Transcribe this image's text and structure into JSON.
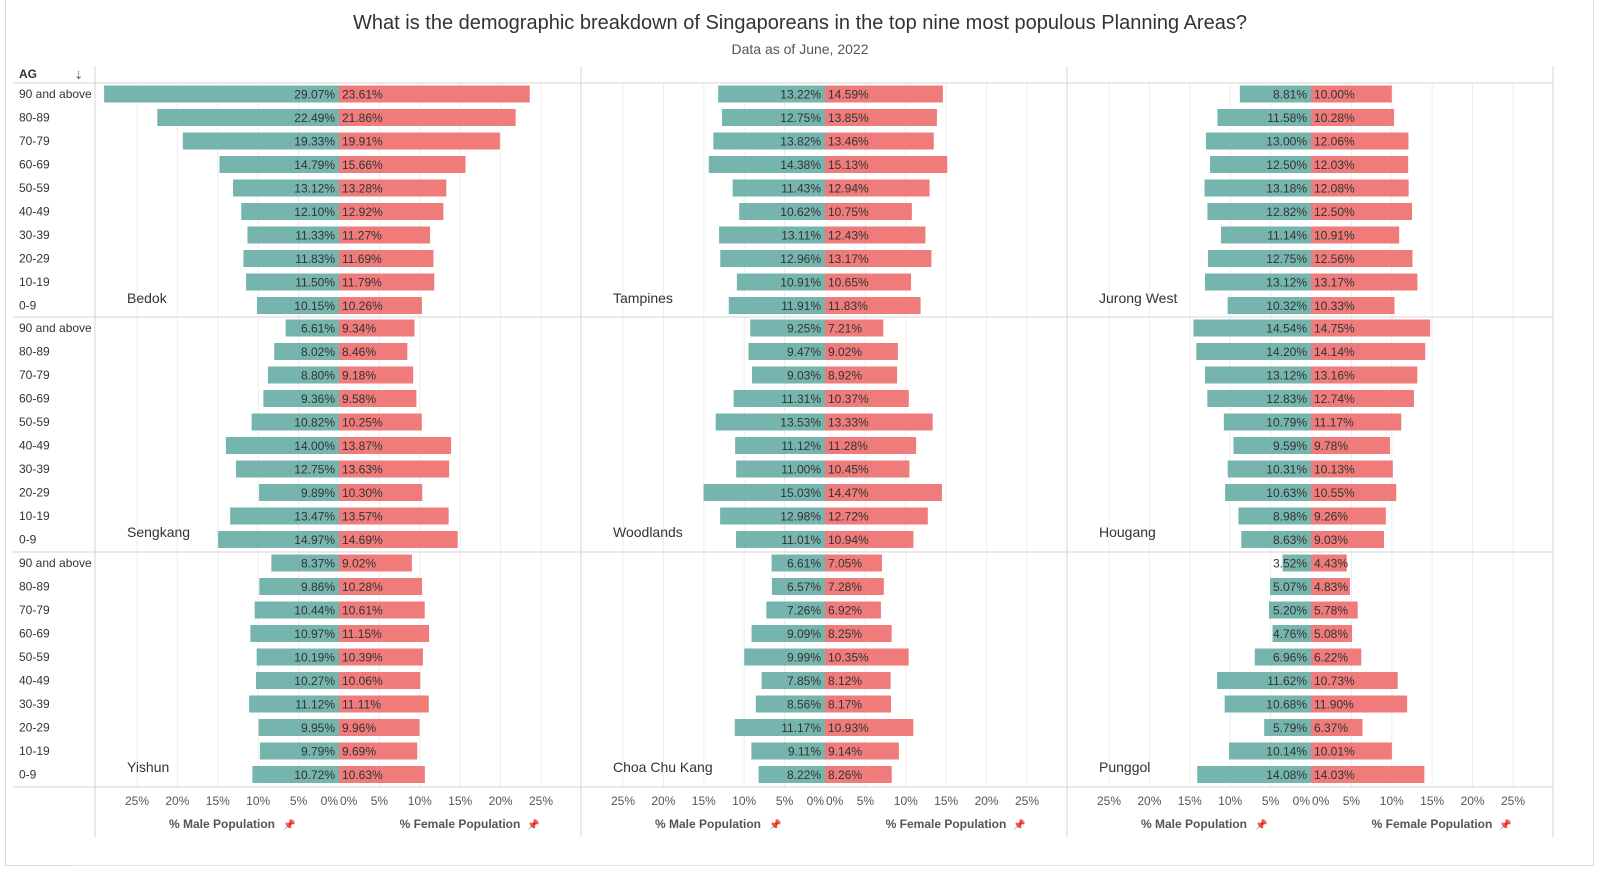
{
  "header": {
    "title": "What is the demographic breakdown of Singaporeans in the top nine most populous Planning Areas?",
    "subtitle": "Data as of June, 2022"
  },
  "row_header": "AG",
  "colors": {
    "male": "#76b5ad",
    "female": "#ef7b7b",
    "grid": "#d6d6d6",
    "gridlight": "#ececec"
  },
  "axis": {
    "ticks_male": [
      "25%",
      "20%",
      "15%",
      "10%",
      "5%",
      "0%"
    ],
    "ticks_female": [
      "0%",
      "5%",
      "10%",
      "15%",
      "20%",
      "25%"
    ],
    "male_label": "% Male Population",
    "female_label": "% Female Population",
    "pin_icon": "pin-icon"
  },
  "chart_data": {
    "type": "bar",
    "subtype": "population-pyramid",
    "title": "What is the demographic breakdown of Singaporeans in the top nine most populous Planning Areas?",
    "subtitle": "Data as of June, 2022",
    "xlabel_male": "% Male Population",
    "xlabel_female": "% Female Population",
    "xlim": [
      0,
      25
    ],
    "categories": [
      "90 and above",
      "80-89",
      "70-79",
      "60-69",
      "50-59",
      "40-49",
      "30-39",
      "20-29",
      "10-19",
      "0-9"
    ],
    "areas": [
      {
        "name": "Bedok",
        "male": [
          29.07,
          22.49,
          19.33,
          14.79,
          13.12,
          12.1,
          11.33,
          11.83,
          11.5,
          10.15
        ],
        "female": [
          23.61,
          21.86,
          19.91,
          15.66,
          13.28,
          12.92,
          11.27,
          11.69,
          11.79,
          10.26
        ]
      },
      {
        "name": "Tampines",
        "male": [
          13.22,
          12.75,
          13.82,
          14.38,
          11.43,
          10.62,
          13.11,
          12.96,
          10.91,
          11.91
        ],
        "female": [
          14.59,
          13.85,
          13.46,
          15.13,
          12.94,
          10.75,
          12.43,
          13.17,
          10.65,
          11.83
        ]
      },
      {
        "name": "Jurong West",
        "male": [
          8.81,
          11.58,
          13.0,
          12.5,
          13.18,
          12.82,
          11.14,
          12.75,
          13.12,
          10.32
        ],
        "female": [
          10.0,
          10.28,
          12.06,
          12.03,
          12.08,
          12.5,
          10.91,
          12.56,
          13.17,
          10.33
        ]
      },
      {
        "name": "Sengkang",
        "male": [
          6.61,
          8.02,
          8.8,
          9.36,
          10.82,
          14.0,
          12.75,
          9.89,
          13.47,
          14.97
        ],
        "female": [
          9.34,
          8.46,
          9.18,
          9.58,
          10.25,
          13.87,
          13.63,
          10.3,
          13.57,
          14.69
        ]
      },
      {
        "name": "Woodlands",
        "male": [
          9.25,
          9.47,
          9.03,
          11.31,
          13.53,
          11.12,
          11.0,
          15.03,
          12.98,
          11.01
        ],
        "female": [
          7.21,
          9.02,
          8.92,
          10.37,
          13.33,
          11.28,
          10.45,
          14.47,
          12.72,
          10.94
        ]
      },
      {
        "name": "Hougang",
        "male": [
          14.54,
          14.2,
          13.12,
          12.83,
          10.79,
          9.59,
          10.31,
          10.63,
          8.98,
          8.63
        ],
        "female": [
          14.75,
          14.14,
          13.16,
          12.74,
          11.17,
          9.78,
          10.13,
          10.55,
          9.26,
          9.03
        ]
      },
      {
        "name": "Yishun",
        "male": [
          8.37,
          9.86,
          10.44,
          10.97,
          10.19,
          10.27,
          11.12,
          9.95,
          9.79,
          10.72
        ],
        "female": [
          9.02,
          10.28,
          10.61,
          11.15,
          10.39,
          10.06,
          11.11,
          9.96,
          9.69,
          10.63
        ]
      },
      {
        "name": "Choa Chu Kang",
        "male": [
          6.61,
          6.57,
          7.26,
          9.09,
          9.99,
          7.85,
          8.56,
          11.17,
          9.11,
          8.22
        ],
        "female": [
          7.05,
          7.28,
          6.92,
          8.25,
          10.35,
          8.12,
          8.17,
          10.93,
          9.14,
          8.26
        ]
      },
      {
        "name": "Punggol",
        "male": [
          3.52,
          5.07,
          5.2,
          4.76,
          6.96,
          11.62,
          10.68,
          5.79,
          10.14,
          14.08
        ],
        "female": [
          4.43,
          4.83,
          5.78,
          5.08,
          6.22,
          10.73,
          11.9,
          6.37,
          10.01,
          14.03
        ]
      }
    ]
  }
}
